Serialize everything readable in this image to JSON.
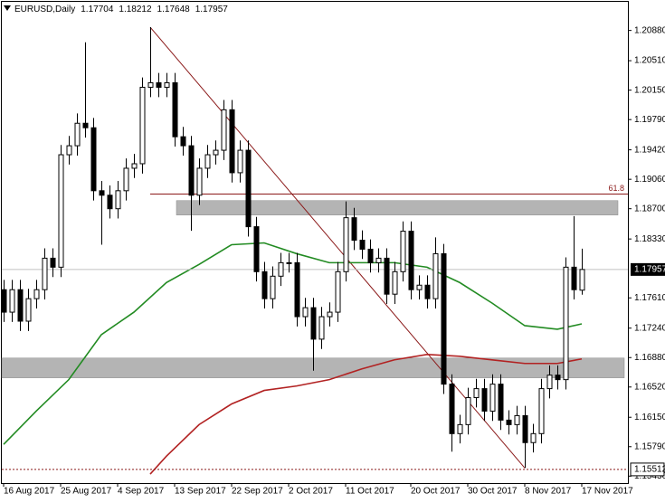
{
  "chart_data": {
    "type": "candlestick",
    "title": "EURUSD,Daily",
    "categories": [
      "16 Aug 2017",
      null,
      null,
      null,
      null,
      null,
      null,
      "25 Aug 2017",
      null,
      null,
      null,
      null,
      null,
      null,
      "4 Sep 2017",
      null,
      null,
      null,
      null,
      null,
      null,
      "13 Sep 2017",
      null,
      null,
      null,
      null,
      null,
      null,
      "22 Sep 2017",
      null,
      null,
      null,
      null,
      null,
      null,
      "2 Oct 2017",
      null,
      null,
      null,
      null,
      null,
      null,
      "11 Oct 2017",
      null,
      null,
      null,
      null,
      null,
      null,
      null,
      "20 Oct 2017",
      null,
      null,
      null,
      null,
      null,
      null,
      "30 Oct 2017",
      null,
      null,
      null,
      null,
      null,
      null,
      "8 Nov 2017",
      null,
      null,
      null,
      null,
      null,
      null,
      "17 Nov 2017"
    ],
    "open": [
      1.1771,
      1.17435,
      1.1771,
      1.17325,
      1.176,
      1.1771,
      1.18095,
      1.17985,
      1.1936,
      1.1947,
      1.19745,
      1.1969,
      1.1892,
      1.18865,
      1.187,
      1.1892,
      1.19195,
      1.1925,
      1.20185,
      1.2024,
      1.20185,
      1.2024,
      1.1958,
      1.1947,
      1.18865,
      1.19195,
      1.1936,
      1.19415,
      1.1991,
      1.1914,
      1.19415,
      1.1848,
      1.1793,
      1.176,
      1.17875,
      1.1804,
      1.1804,
      1.1738,
      1.1749,
      1.17105,
      1.1738,
      1.17435,
      1.1793,
      1.1859,
      1.18315,
      1.18205,
      1.1804,
      1.18095,
      1.17655,
      1.1793,
      1.18425,
      1.1771,
      1.17765,
      1.176,
      1.1815,
      1.16555,
      1.1595,
      1.1606,
      1.1639,
      1.165,
      1.16225,
      1.16555,
      1.16115,
      1.1606,
      1.1617,
      1.1584,
      1.1595,
      1.165,
      1.16665,
      1.1661,
      1.17985,
      1.17704
    ],
    "high": [
      1.1783,
      1.1783,
      1.1783,
      1.1772,
      1.1783,
      1.18215,
      1.18215,
      1.1948,
      1.1959,
      1.19865,
      1.20735,
      1.1981,
      1.1904,
      1.18985,
      1.1904,
      1.19315,
      1.1937,
      1.20305,
      1.2092,
      1.2036,
      1.2036,
      1.2036,
      1.197,
      1.1959,
      1.19315,
      1.1948,
      1.19535,
      1.2003,
      1.2003,
      1.19535,
      1.19535,
      1.186,
      1.1805,
      1.17995,
      1.1816,
      1.1816,
      1.1816,
      1.1761,
      1.1761,
      1.175,
      1.17555,
      1.1805,
      1.1879,
      1.1871,
      1.18435,
      1.18325,
      1.18215,
      1.18215,
      1.1805,
      1.18545,
      1.18545,
      1.17885,
      1.17885,
      1.1835,
      1.1827,
      1.16675,
      1.1618,
      1.1651,
      1.1662,
      1.1662,
      1.16675,
      1.16675,
      1.16235,
      1.1629,
      1.1629,
      1.1607,
      1.1662,
      1.16785,
      1.16785,
      1.18105,
      1.1861,
      1.18212
    ],
    "low": [
      1.17315,
      1.17315,
      1.17205,
      1.17205,
      1.1748,
      1.1759,
      1.17865,
      1.17865,
      1.1924,
      1.1935,
      1.1957,
      1.188,
      1.1826,
      1.1858,
      1.1858,
      1.188,
      1.19075,
      1.1913,
      1.20065,
      1.20065,
      1.20065,
      1.1946,
      1.1935,
      1.1843,
      1.18745,
      1.19075,
      1.1924,
      1.19295,
      1.1902,
      1.1902,
      1.1836,
      1.1781,
      1.1748,
      1.1748,
      1.17755,
      1.1792,
      1.1726,
      1.1726,
      1.1672,
      1.16985,
      1.1726,
      1.17315,
      1.1781,
      1.18195,
      1.18085,
      1.1792,
      1.1792,
      1.17535,
      1.17535,
      1.1781,
      1.1759,
      1.1759,
      1.1748,
      1.1748,
      1.16435,
      1.1573,
      1.1583,
      1.1594,
      1.1627,
      1.16105,
      1.16105,
      1.15995,
      1.1594,
      1.1594,
      1.1553,
      1.1572,
      1.1583,
      1.1638,
      1.1649,
      1.1649,
      1.1759,
      1.17648
    ],
    "close": [
      1.17435,
      1.1771,
      1.17325,
      1.176,
      1.1771,
      1.18095,
      1.17985,
      1.1936,
      1.1947,
      1.19745,
      1.1969,
      1.1892,
      1.18865,
      1.187,
      1.1892,
      1.19195,
      1.1925,
      1.20185,
      1.2024,
      1.20185,
      1.2024,
      1.1958,
      1.1947,
      1.18865,
      1.19195,
      1.1936,
      1.19415,
      1.1991,
      1.1914,
      1.19415,
      1.1848,
      1.1793,
      1.176,
      1.17875,
      1.1804,
      1.1804,
      1.1738,
      1.1749,
      1.17105,
      1.1738,
      1.17435,
      1.1793,
      1.1859,
      1.18315,
      1.18205,
      1.1804,
      1.18095,
      1.17655,
      1.1793,
      1.18425,
      1.1771,
      1.17765,
      1.176,
      1.1815,
      1.16555,
      1.1595,
      1.1606,
      1.1639,
      1.165,
      1.16225,
      1.16555,
      1.16115,
      1.1606,
      1.1617,
      1.1584,
      1.1595,
      1.165,
      1.16665,
      1.1661,
      1.17985,
      1.1771,
      1.17957
    ],
    "series": [
      {
        "color": "#228b22",
        "x": [
          0,
          4,
          8,
          12,
          16,
          20,
          24,
          28,
          32,
          36,
          40,
          44,
          48,
          52,
          56,
          60,
          64,
          68,
          71
        ],
        "values": [
          1.15818,
          1.16225,
          1.1661,
          1.1716,
          1.17435,
          1.17798,
          1.18018,
          1.1826,
          1.18282,
          1.1815,
          1.1804,
          1.1804,
          1.1804,
          1.17985,
          1.17798,
          1.17545,
          1.1727,
          1.17226,
          1.17292
        ]
      },
      {
        "color": "#b22222",
        "x": [
          18,
          20,
          24,
          28,
          32,
          36,
          40,
          44,
          48,
          52,
          56,
          60,
          64,
          68,
          71
        ],
        "values": [
          1.15455,
          1.15675,
          1.1606,
          1.16313,
          1.16478,
          1.16533,
          1.1661,
          1.16742,
          1.16852,
          1.16918,
          1.16896,
          1.16852,
          1.16808,
          1.16808,
          1.16863
        ]
      }
    ],
    "zones": [
      {
        "from": 1.18799,
        "to": 1.18623
      },
      {
        "from": 1.16874,
        "to": 1.16632
      }
    ],
    "trendline": {
      "x": [
        18,
        64
      ],
      "values": [
        1.2092,
        1.1553
      ]
    },
    "fib": {
      "label": "61.8",
      "x": 18,
      "value": 1.1888
    },
    "level": 1.15512,
    "ylim": [
      1.15345,
      1.2123
    ],
    "yticks": [
      {
        "value": 1.2088,
        "label": "1.20880"
      },
      {
        "value": 1.2051,
        "label": "1.20510"
      },
      {
        "value": 1.2015,
        "label": "1.20150"
      },
      {
        "value": 1.1979,
        "label": "1.19790"
      },
      {
        "value": 1.1942,
        "label": "1.19420"
      },
      {
        "value": 1.1906,
        "label": "1.19060"
      },
      {
        "value": 1.187,
        "label": "1.18700"
      },
      {
        "value": 1.1833,
        "label": "1.18330"
      },
      {
        "value": 1.1761,
        "label": "1.17610"
      },
      {
        "value": 1.1724,
        "label": "1.17240"
      },
      {
        "value": 1.1688,
        "label": "1.16880"
      },
      {
        "value": 1.1652,
        "label": "1.16520"
      },
      {
        "value": 1.1615,
        "label": "1.16150"
      },
      {
        "value": 1.1579,
        "label": "1.15790"
      },
      {
        "value": 1.1543,
        "label": "1.15430"
      }
    ]
  }
}
